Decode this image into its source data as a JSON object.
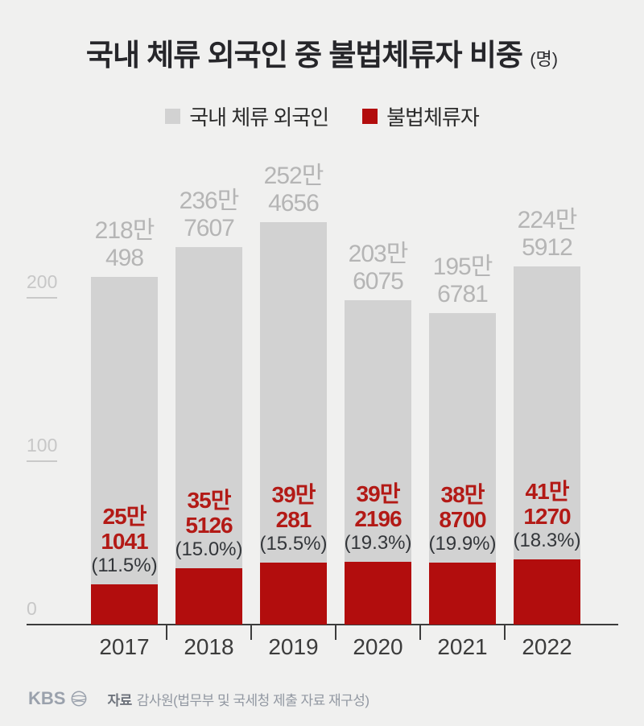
{
  "title": {
    "text": "국내 체류 외국인 중 불법체류자 비중",
    "unit": "(명)"
  },
  "legend": [
    {
      "label": "국내 체류 외국인",
      "color": "#d2d2d2"
    },
    {
      "label": "불법체류자",
      "color": "#b20d0d"
    }
  ],
  "footer": {
    "logo_text": "KBS",
    "source_prefix": "자료",
    "source_text": "감사원(법무부 및 국세청 제출 자료 재구성)"
  },
  "chart_data": {
    "type": "bar",
    "title": "국내 체류 외국인 중 불법체류자 비중 (명)",
    "categories": [
      "2017",
      "2018",
      "2019",
      "2020",
      "2021",
      "2022"
    ],
    "y_axis": {
      "ticks": [
        0,
        100,
        200
      ],
      "tick_unit": "만 (10,000 persons)",
      "range": [
        0,
        260
      ],
      "grid": false
    },
    "legend_position": "top",
    "series": [
      {
        "name": "국내 체류 외국인",
        "role": "total-foreign-residents",
        "color": "#d2d2d2",
        "values": [
          2180498,
          2367607,
          2524656,
          2036075,
          1956781,
          2245912
        ],
        "value_labels": [
          "218만|498",
          "236만|7607",
          "252만|4656",
          "203만|6075",
          "195만|6781",
          "224만|5912"
        ]
      },
      {
        "name": "불법체류자",
        "role": "illegal-immigrants",
        "color": "#b20d0d",
        "values": [
          251041,
          355126,
          390281,
          392196,
          388700,
          411270
        ],
        "value_labels": [
          "25만|1041",
          "35만|5126",
          "39만|281",
          "39만|2196",
          "38만|8700",
          "41만|1270"
        ],
        "share_labels": [
          "(11.5%)",
          "(15.0%)",
          "(15.5%)",
          "(19.3%)",
          "(19.9%)",
          "(18.3%)"
        ]
      }
    ]
  }
}
